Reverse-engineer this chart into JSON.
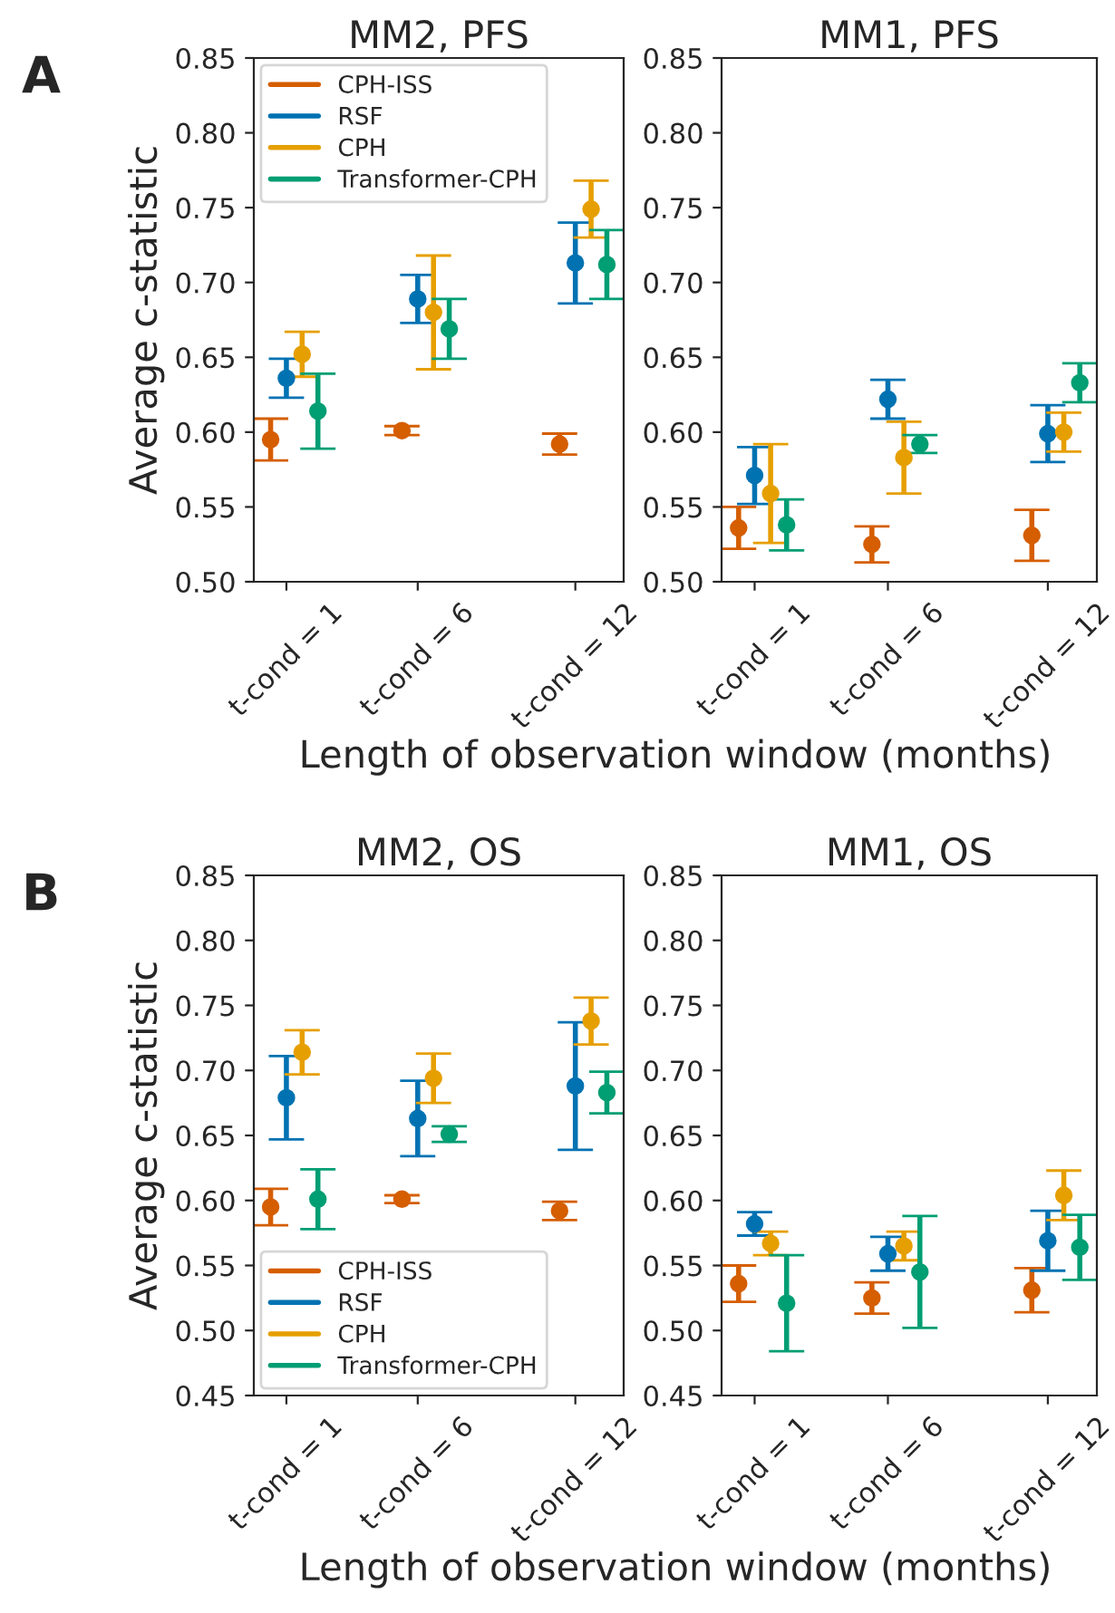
{
  "chart_data": [
    {
      "type": "scatter",
      "title": "MM2, PFS",
      "xlabel": "Length of observation window (months)",
      "ylabel": "Average c-statistic",
      "annotations": [
        "A"
      ],
      "legend": "top left",
      "xlim": [
        -0.24,
        13.84
      ],
      "xticks": [
        {
          "value": 1,
          "label": "t-cond = 1"
        },
        {
          "value": 6,
          "label": "t-cond = 6"
        },
        {
          "value": 12,
          "label": "t-cond = 12"
        }
      ],
      "ylim": [
        0.5,
        0.85
      ],
      "yticks": [
        {
          "value": 0.5,
          "label": "0.50"
        },
        0.55,
        {
          "value": 0.6,
          "label": "0.60"
        },
        0.65,
        {
          "value": 0.7,
          "label": "0.70"
        },
        0.75,
        {
          "value": 0.8,
          "label": "0.80"
        },
        0.85
      ],
      "marker": "circle",
      "series": [
        {
          "name": "CPH-ISS",
          "color": "#d55e00",
          "x": [
            0.4,
            5.4,
            11.4
          ],
          "values": [
            0.595,
            0.601,
            0.592
          ],
          "errors": [
            [
              0.581,
              0.609
            ],
            [
              0.598,
              0.604
            ],
            [
              0.585,
              0.599
            ]
          ]
        },
        {
          "name": "RSF",
          "color": "#0072b2",
          "x": [
            1,
            6,
            12
          ],
          "values": [
            0.636,
            0.689,
            0.713
          ],
          "errors": [
            [
              0.623,
              0.649
            ],
            [
              0.673,
              0.705
            ],
            [
              0.686,
              0.74
            ]
          ]
        },
        {
          "name": "CPH",
          "color": "#e69f00",
          "x": [
            1.6,
            6.6,
            12.6
          ],
          "values": [
            0.652,
            0.68,
            0.749
          ],
          "errors": [
            [
              0.637,
              0.667
            ],
            [
              0.642,
              0.718
            ],
            [
              0.73,
              0.768
            ]
          ]
        },
        {
          "name": "Transformer-CPH",
          "color": "#009e73",
          "x": [
            2.2,
            7.2,
            13.2
          ],
          "values": [
            0.614,
            0.669,
            0.712
          ],
          "errors": [
            [
              0.589,
              0.639
            ],
            [
              0.649,
              0.689
            ],
            [
              0.689,
              0.735
            ]
          ]
        }
      ]
    },
    {
      "type": "scatter",
      "title": "MM1, PFS",
      "xlim": [
        -0.24,
        13.84
      ],
      "xticks": [
        {
          "value": 1,
          "label": "t-cond = 1"
        },
        {
          "value": 6,
          "label": "t-cond = 6"
        },
        {
          "value": 12,
          "label": "t-cond = 12"
        }
      ],
      "ylim": [
        0.5,
        0.85
      ],
      "yticks": [
        {
          "value": 0.5,
          "label": "0.50"
        },
        0.55,
        {
          "value": 0.6,
          "label": "0.60"
        },
        0.65,
        {
          "value": 0.7,
          "label": "0.70"
        },
        0.75,
        {
          "value": 0.8,
          "label": "0.80"
        },
        0.85
      ],
      "marker": "circle",
      "series": [
        {
          "color": "#d55e00",
          "x": [
            0.4,
            5.4,
            11.4
          ],
          "values": [
            0.536,
            0.525,
            0.531
          ],
          "errors": [
            [
              0.522,
              0.55
            ],
            [
              0.513,
              0.537
            ],
            [
              0.514,
              0.548
            ]
          ]
        },
        {
          "color": "#0072b2",
          "x": [
            1,
            6,
            12
          ],
          "values": [
            0.571,
            0.622,
            0.599
          ],
          "errors": [
            [
              0.552,
              0.59
            ],
            [
              0.609,
              0.635
            ],
            [
              0.58,
              0.618
            ]
          ]
        },
        {
          "color": "#e69f00",
          "x": [
            1.6,
            6.6,
            12.6
          ],
          "values": [
            0.559,
            0.583,
            0.6
          ],
          "errors": [
            [
              0.526,
              0.592
            ],
            [
              0.559,
              0.607
            ],
            [
              0.587,
              0.613
            ]
          ]
        },
        {
          "color": "#009e73",
          "x": [
            2.2,
            7.2,
            13.2
          ],
          "values": [
            0.538,
            0.592,
            0.633
          ],
          "errors": [
            [
              0.521,
              0.555
            ],
            [
              0.586,
              0.598
            ],
            [
              0.62,
              0.646
            ]
          ]
        }
      ]
    },
    {
      "type": "scatter",
      "title": "MM2, OS",
      "xlabel": "Length of observation window (months)",
      "ylabel": "Average c-statistic",
      "annotations": [
        "B"
      ],
      "legend": "bottom left",
      "xlim": [
        -0.24,
        13.84
      ],
      "xticks": [
        {
          "value": 1,
          "label": "t-cond = 1"
        },
        {
          "value": 6,
          "label": "t-cond = 6"
        },
        {
          "value": 12,
          "label": "t-cond = 12"
        }
      ],
      "ylim": [
        0.45,
        0.85
      ],
      "yticks": [
        0.45,
        {
          "value": 0.5,
          "label": "0.50"
        },
        0.55,
        {
          "value": 0.6,
          "label": "0.60"
        },
        0.65,
        {
          "value": 0.7,
          "label": "0.70"
        },
        0.75,
        {
          "value": 0.8,
          "label": "0.80"
        },
        0.85
      ],
      "marker": "circle",
      "series": [
        {
          "name": "CPH-ISS",
          "color": "#d55e00",
          "x": [
            0.4,
            5.4,
            11.4
          ],
          "values": [
            0.595,
            0.601,
            0.592
          ],
          "errors": [
            [
              0.581,
              0.609
            ],
            [
              0.598,
              0.604
            ],
            [
              0.585,
              0.599
            ]
          ]
        },
        {
          "name": "RSF",
          "color": "#0072b2",
          "x": [
            1,
            6,
            12
          ],
          "values": [
            0.679,
            0.663,
            0.688
          ],
          "errors": [
            [
              0.647,
              0.711
            ],
            [
              0.634,
              0.692
            ],
            [
              0.639,
              0.737
            ]
          ]
        },
        {
          "name": "CPH",
          "color": "#e69f00",
          "x": [
            1.6,
            6.6,
            12.6
          ],
          "values": [
            0.714,
            0.694,
            0.738
          ],
          "errors": [
            [
              0.697,
              0.731
            ],
            [
              0.675,
              0.713
            ],
            [
              0.72,
              0.756
            ]
          ]
        },
        {
          "name": "Transformer-CPH",
          "color": "#009e73",
          "x": [
            2.2,
            7.2,
            13.2
          ],
          "values": [
            0.601,
            0.651,
            0.683
          ],
          "errors": [
            [
              0.578,
              0.624
            ],
            [
              0.645,
              0.657
            ],
            [
              0.667,
              0.699
            ]
          ]
        }
      ]
    },
    {
      "type": "scatter",
      "title": "MM1, OS",
      "xlim": [
        -0.24,
        13.84
      ],
      "xticks": [
        {
          "value": 1,
          "label": "t-cond = 1"
        },
        {
          "value": 6,
          "label": "t-cond = 6"
        },
        {
          "value": 12,
          "label": "t-cond = 12"
        }
      ],
      "ylim": [
        0.45,
        0.85
      ],
      "yticks": [
        0.45,
        {
          "value": 0.5,
          "label": "0.50"
        },
        0.55,
        {
          "value": 0.6,
          "label": "0.60"
        },
        0.65,
        {
          "value": 0.7,
          "label": "0.70"
        },
        0.75,
        {
          "value": 0.8,
          "label": "0.80"
        },
        0.85
      ],
      "marker": "circle",
      "series": [
        {
          "color": "#d55e00",
          "x": [
            0.4,
            5.4,
            11.4
          ],
          "values": [
            0.536,
            0.525,
            0.531
          ],
          "errors": [
            [
              0.522,
              0.55
            ],
            [
              0.513,
              0.537
            ],
            [
              0.514,
              0.548
            ]
          ]
        },
        {
          "color": "#0072b2",
          "x": [
            1,
            6,
            12
          ],
          "values": [
            0.582,
            0.559,
            0.569
          ],
          "errors": [
            [
              0.573,
              0.591
            ],
            [
              0.546,
              0.572
            ],
            [
              0.546,
              0.592
            ]
          ]
        },
        {
          "color": "#e69f00",
          "x": [
            1.6,
            6.6,
            12.6
          ],
          "values": [
            0.567,
            0.565,
            0.604
          ],
          "errors": [
            [
              0.558,
              0.576
            ],
            [
              0.554,
              0.576
            ],
            [
              0.585,
              0.623
            ]
          ]
        },
        {
          "color": "#009e73",
          "x": [
            2.2,
            7.2,
            13.2
          ],
          "values": [
            0.521,
            0.545,
            0.564
          ],
          "errors": [
            [
              0.484,
              0.558
            ],
            [
              0.502,
              0.588
            ],
            [
              0.539,
              0.589
            ]
          ]
        }
      ]
    }
  ]
}
